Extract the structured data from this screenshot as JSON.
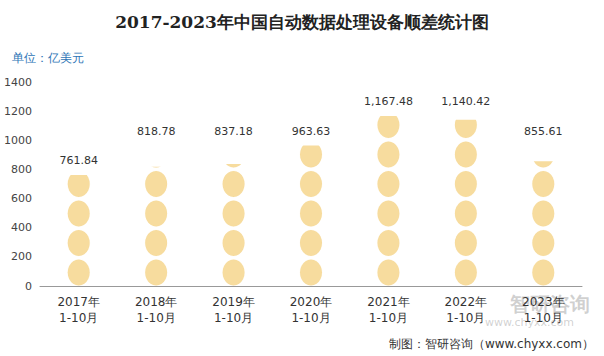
{
  "chart_data": {
    "type": "bar",
    "title": "2017-2023年中国自动数据处理设备顺差统计图",
    "unit": "单位：亿美元",
    "source": "制图：智研咨询（www.chyxx.com）",
    "watermark": [
      "智研咨询",
      "www.chyxx.com"
    ],
    "categories": [
      "2017年\n1-10月",
      "2018年\n1-10月",
      "2019年\n1-10月",
      "2020年\n1-10月",
      "2021年\n1-10月",
      "2022年\n1-10月",
      "2023年\n1-10月"
    ],
    "values": [
      761.84,
      818.78,
      837.18,
      963.63,
      1167.48,
      1140.42,
      855.61
    ],
    "value_labels": [
      "761.84",
      "818.78",
      "837.18",
      "963.63",
      "1,167.48",
      "1,140.42",
      "855.61"
    ],
    "color": "#f7dc9e",
    "ylim": [
      0,
      1400
    ],
    "yticks": [
      0,
      200,
      400,
      600,
      800,
      1000,
      1200,
      1400
    ],
    "grid": false,
    "data_labels": true
  }
}
